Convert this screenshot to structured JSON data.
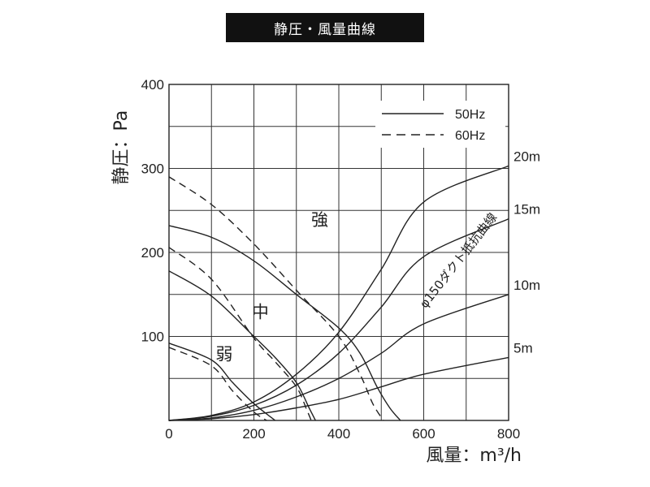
{
  "title": "静圧・風量曲線",
  "chart_data": {
    "type": "line",
    "title": "静圧・風量曲線",
    "xlabel": "風量：m³/h",
    "ylabel": "静圧：Pa",
    "xlim": [
      0,
      800
    ],
    "ylim": [
      0,
      400
    ],
    "x_ticks": [
      0,
      200,
      400,
      600,
      800
    ],
    "y_ticks": [
      100,
      200,
      300,
      400
    ],
    "grid": true,
    "legend": {
      "placement": "top-right",
      "entries": [
        {
          "label": "50Hz",
          "style": "solid"
        },
        {
          "label": "60Hz",
          "style": "dashed"
        }
      ]
    },
    "fan_curves": [
      {
        "label": "強",
        "freq": "50Hz",
        "style": "solid",
        "points": [
          [
            0,
            232
          ],
          [
            100,
            218
          ],
          [
            200,
            190
          ],
          [
            300,
            150
          ],
          [
            400,
            110
          ],
          [
            450,
            80
          ],
          [
            490,
            40
          ],
          [
            520,
            15
          ],
          [
            545,
            0
          ]
        ]
      },
      {
        "label": "強",
        "freq": "60Hz",
        "style": "dashed",
        "points": [
          [
            0,
            290
          ],
          [
            100,
            257
          ],
          [
            200,
            210
          ],
          [
            300,
            155
          ],
          [
            400,
            100
          ],
          [
            450,
            55
          ],
          [
            480,
            20
          ],
          [
            505,
            0
          ]
        ]
      },
      {
        "label": "中",
        "freq": "50Hz",
        "style": "solid",
        "points": [
          [
            0,
            178
          ],
          [
            100,
            148
          ],
          [
            200,
            100
          ],
          [
            250,
            75
          ],
          [
            300,
            45
          ],
          [
            330,
            15
          ],
          [
            345,
            0
          ]
        ]
      },
      {
        "label": "中",
        "freq": "60Hz",
        "style": "dashed",
        "points": [
          [
            0,
            206
          ],
          [
            100,
            168
          ],
          [
            200,
            98
          ],
          [
            250,
            70
          ],
          [
            300,
            40
          ],
          [
            325,
            12
          ],
          [
            335,
            0
          ]
        ]
      },
      {
        "label": "弱",
        "freq": "50Hz",
        "style": "solid",
        "points": [
          [
            0,
            92
          ],
          [
            100,
            72
          ],
          [
            150,
            45
          ],
          [
            200,
            20
          ],
          [
            250,
            0
          ]
        ]
      },
      {
        "label": "弱",
        "freq": "60Hz",
        "style": "dashed",
        "points": [
          [
            0,
            87
          ],
          [
            100,
            65
          ],
          [
            150,
            35
          ],
          [
            200,
            10
          ],
          [
            230,
            0
          ]
        ]
      }
    ],
    "duct_curves_label": "φ150ダクト抵抗曲線",
    "duct_curves": [
      {
        "label": "20m",
        "points": [
          [
            0,
            0
          ],
          [
            100,
            6
          ],
          [
            200,
            22
          ],
          [
            300,
            55
          ],
          [
            400,
            105
          ],
          [
            500,
            180
          ],
          [
            600,
            260
          ],
          [
            800,
            303
          ]
        ]
      },
      {
        "label": "15m",
        "points": [
          [
            0,
            0
          ],
          [
            100,
            5
          ],
          [
            200,
            18
          ],
          [
            300,
            42
          ],
          [
            400,
            80
          ],
          [
            500,
            135
          ],
          [
            600,
            195
          ],
          [
            800,
            240
          ]
        ]
      },
      {
        "label": "10m",
        "points": [
          [
            0,
            0
          ],
          [
            100,
            3
          ],
          [
            200,
            12
          ],
          [
            300,
            28
          ],
          [
            400,
            50
          ],
          [
            500,
            80
          ],
          [
            600,
            115
          ],
          [
            800,
            150
          ]
        ]
      },
      {
        "label": "5m",
        "points": [
          [
            0,
            0
          ],
          [
            100,
            2
          ],
          [
            200,
            7
          ],
          [
            300,
            15
          ],
          [
            400,
            25
          ],
          [
            500,
            40
          ],
          [
            600,
            55
          ],
          [
            800,
            75
          ]
        ]
      }
    ]
  }
}
